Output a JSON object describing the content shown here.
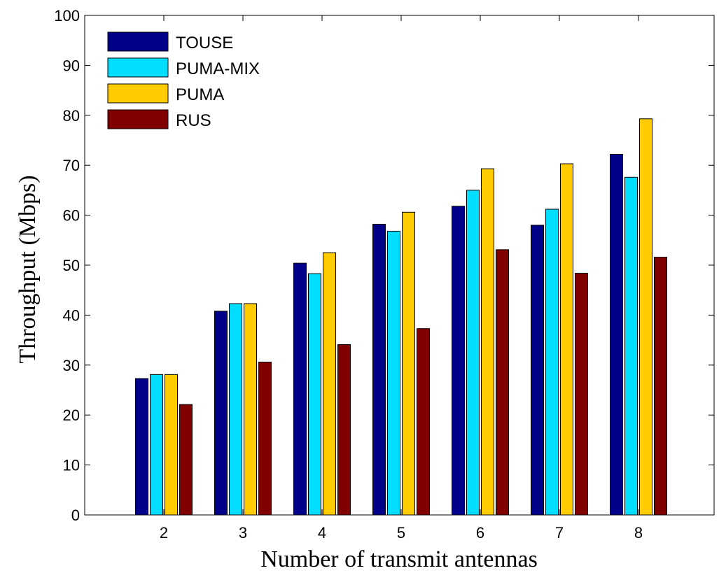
{
  "chart_data": {
    "type": "bar",
    "xlabel": "Number of transmit antennas",
    "ylabel": "Throughput (Mbps)",
    "ylim": [
      0,
      100
    ],
    "yticks": [
      0,
      10,
      20,
      30,
      40,
      50,
      60,
      70,
      80,
      90,
      100
    ],
    "categories": [
      "2",
      "3",
      "4",
      "5",
      "6",
      "7",
      "8"
    ],
    "legend_position": "top-left",
    "grid": false,
    "series": [
      {
        "name": "TOUSE",
        "color": "#000088",
        "values": [
          27.3,
          40.8,
          50.4,
          58.2,
          61.8,
          58.0,
          72.2
        ]
      },
      {
        "name": "PUMA-MIX",
        "color": "#00DDFF",
        "values": [
          28.1,
          42.3,
          48.3,
          56.8,
          65.0,
          61.2,
          67.6
        ]
      },
      {
        "name": "PUMA",
        "color": "#FFCC00",
        "values": [
          28.1,
          42.3,
          52.5,
          60.6,
          69.3,
          70.3,
          79.3
        ]
      },
      {
        "name": "RUS",
        "color": "#800000",
        "values": [
          22.1,
          30.6,
          34.1,
          37.3,
          53.1,
          48.4,
          51.6
        ]
      }
    ]
  }
}
